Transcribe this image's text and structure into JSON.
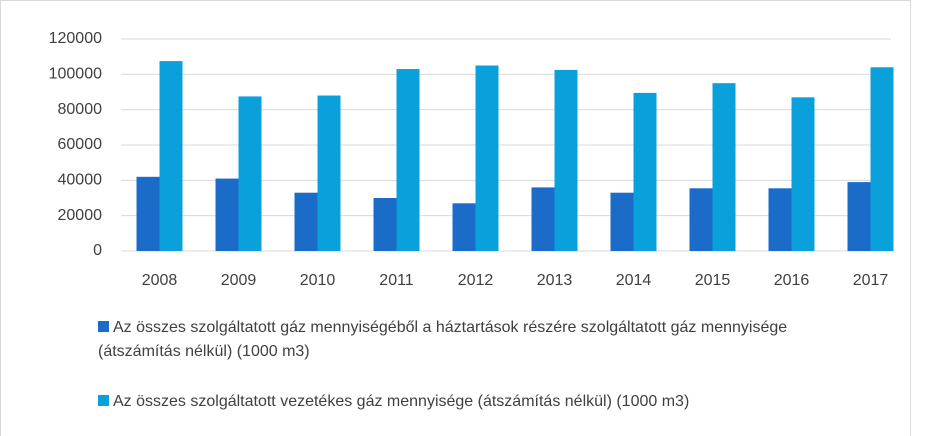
{
  "chart_data": {
    "type": "bar",
    "categories": [
      "2008",
      "2009",
      "2010",
      "2011",
      "2012",
      "2013",
      "2014",
      "2015",
      "2016",
      "2017"
    ],
    "series": [
      {
        "name": "Az összes szolgáltatott gáz mennyiségéből a háztartások részére szolgáltatott gáz mennyisége (átszámítás nélkül) (1000 m3)",
        "color": "#1a6cc8",
        "values": [
          42000,
          41000,
          33000,
          30000,
          27000,
          36000,
          33000,
          35500,
          35500,
          39000
        ]
      },
      {
        "name": "Az összes szolgáltatott vezetékes gáz mennyisége (átszámítás nélkül) (1000 m3)",
        "color": "#0aa0dc",
        "values": [
          107500,
          87500,
          88000,
          103000,
          105000,
          102500,
          89500,
          95000,
          87000,
          104000
        ]
      }
    ],
    "ylim": [
      0,
      120000
    ],
    "yticks": [
      0,
      20000,
      40000,
      60000,
      80000,
      100000,
      120000
    ],
    "grid": true
  }
}
